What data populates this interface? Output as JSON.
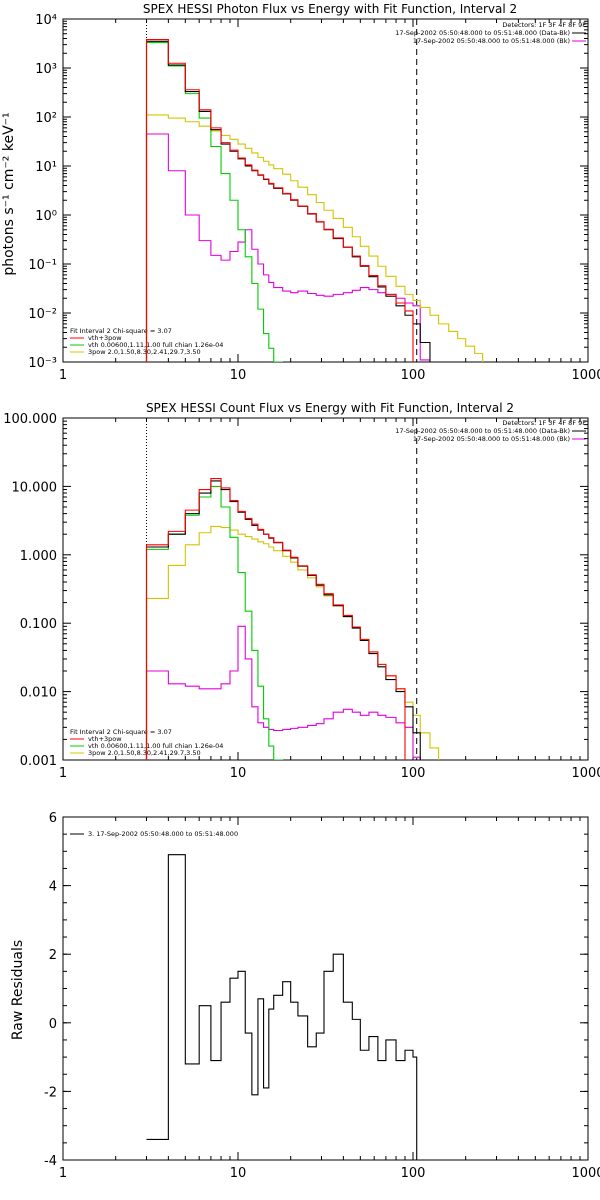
{
  "chart_data": [
    {
      "type": "line",
      "subtype": "step",
      "title": "SPEX HESSI Photon Flux vs Energy with Fit Function, Interval 2",
      "ylabel": "photons s⁻¹ cm⁻² keV⁻¹",
      "xlabel": "",
      "xscale": "log",
      "yscale": "log",
      "xlim": [
        1,
        1000
      ],
      "ylim": [
        0.001,
        10000
      ],
      "xticks": [
        "1",
        "10",
        "100",
        "1000"
      ],
      "yticks": [
        "10⁻³",
        "10⁻²",
        "10⁻¹",
        "10⁰",
        "10¹",
        "10²",
        "10³",
        "10⁴"
      ],
      "header_lines": [
        "Detectors: 1F 3F 4F 8F 9F",
        "17-Sep-2002 05:50:48.000 to 05:51:48.000 (Data-Bk)",
        "17-Sep-2002 05:50:48.000 to 05:51:48.000 (Bk)"
      ],
      "legend": [
        "Fit Interval 2   Chi-square = 3.07",
        "vth+3pow",
        "vth 0.00600,1.11,1.00  full chian 1.26e-04",
        "3pow 2.0,1.50,8.30,2.41,29.7,3.50"
      ],
      "edges": [
        3.0,
        4.0,
        5.0,
        6.0,
        7.0,
        8.0,
        9.0,
        10.0,
        11.0,
        12.0,
        13.0,
        14.0,
        15.0,
        16.0,
        18.0,
        20.0,
        22.0,
        25.0,
        28.0,
        31.0,
        35.0,
        40.0,
        45.0,
        50.0,
        56.0,
        63.0,
        70.0,
        80.0,
        90.0,
        100.0,
        110.0,
        125.0,
        140.0,
        160.0,
        180.0,
        200.0,
        225.0,
        250.0
      ],
      "series": [
        {
          "name": "",
          "color": "#000000",
          "values": [
            3500,
            1150,
            330,
            130,
            55,
            28,
            20,
            14,
            10,
            8,
            6.5,
            5.3,
            4.3,
            3.5,
            2.7,
            2.0,
            1.5,
            1.05,
            0.72,
            0.5,
            0.33,
            0.22,
            0.14,
            0.09,
            0.055,
            0.034,
            0.022,
            0.014,
            0.009,
            0.006,
            0.0025
          ]
        },
        {
          "name": "vth+3pow",
          "color": "#ff0000",
          "values": [
            3800,
            1250,
            360,
            140,
            60,
            30,
            21,
            14.5,
            10.5,
            8.2,
            6.6,
            5.4,
            4.4,
            3.6,
            2.75,
            2.05,
            1.52,
            1.07,
            0.73,
            0.51,
            0.34,
            0.22,
            0.145,
            0.093,
            0.058,
            0.036,
            0.024,
            0.016,
            0.011
          ]
        },
        {
          "name": "vth",
          "color": "#00cc00",
          "values": [
            3300,
            1100,
            300,
            95,
            25,
            7,
            2.0,
            0.5,
            0.14,
            0.04,
            0.012,
            0.0038,
            0.0019,
            0.001
          ]
        },
        {
          "name": "3pow",
          "color": "#d4c400",
          "values": [
            110,
            95,
            80,
            65,
            52,
            42,
            35,
            28,
            23,
            18.5,
            15,
            12.5,
            10.5,
            8.8,
            6.8,
            5.0,
            3.7,
            2.6,
            1.8,
            1.25,
            0.85,
            0.56,
            0.36,
            0.23,
            0.145,
            0.09,
            0.056,
            0.035,
            0.024,
            0.018,
            0.013,
            0.009,
            0.006,
            0.0042,
            0.003,
            0.0021,
            0.0015
          ]
        },
        {
          "name": "(Bk)",
          "color": "#e000e0",
          "values": [
            45,
            8,
            1.0,
            0.3,
            0.15,
            0.12,
            0.18,
            0.28,
            0.5,
            0.2,
            0.1,
            0.06,
            0.042,
            0.033,
            0.028,
            0.026,
            0.028,
            0.025,
            0.023,
            0.022,
            0.024,
            0.026,
            0.029,
            0.033,
            0.03,
            0.026,
            0.024,
            0.02,
            0.016,
            0.014,
            0.0011
          ]
        }
      ],
      "vlines": [
        {
          "x": 3.0,
          "style": "dotted"
        },
        {
          "x": 105,
          "style": "dashed"
        }
      ]
    },
    {
      "type": "line",
      "subtype": "step",
      "title": "SPEX HESSI Count Flux vs Energy with Fit Function, Interval 2",
      "ylabel": "",
      "xscale": "log",
      "yscale": "log",
      "xlim": [
        1,
        1000
      ],
      "ylim": [
        0.001,
        100
      ],
      "xticks": [
        "1",
        "10",
        "100",
        "1000"
      ],
      "yticks": [
        "0.001",
        "0.010",
        "0.100",
        "1.000",
        "10.000",
        "100.000"
      ],
      "header_lines": [
        "Detectors: 1F 3F 4F 8F 9F",
        "17-Sep-2002 05:50:48.000 to 05:51:48.000 (Data-Bk)",
        "17-Sep-2002 05:50:48.000 to 05:51:48.000 (Bk)"
      ],
      "legend": [
        "Fit Interval 2   Chi-square = 3.07",
        "vth+3pow",
        "vth 0.00600,1.11,1.00  full chian 1.26e-04",
        "3pow 2.0,1.50,8.30,2.41,29.7,3.50"
      ],
      "edges": [
        3.0,
        4.0,
        5.0,
        6.0,
        7.0,
        8.0,
        9.0,
        10.0,
        11.0,
        12.0,
        13.0,
        14.0,
        15.0,
        16.0,
        18.0,
        20.0,
        22.0,
        25.0,
        28.0,
        31.0,
        35.0,
        40.0,
        45.0,
        50.0,
        56.0,
        63.0,
        70.0,
        80.0,
        90.0,
        100.0,
        110.0,
        125.0,
        140.0
      ],
      "series": [
        {
          "name": "",
          "color": "#000000",
          "values": [
            1.3,
            2.0,
            4.0,
            8.0,
            12.0,
            9.0,
            6.0,
            4.2,
            3.3,
            2.7,
            2.3,
            2.0,
            1.75,
            1.5,
            1.15,
            0.9,
            0.68,
            0.5,
            0.36,
            0.26,
            0.18,
            0.125,
            0.085,
            0.056,
            0.036,
            0.023,
            0.015,
            0.01,
            0.006,
            0.0025
          ]
        },
        {
          "name": "vth+3pow",
          "color": "#ff0000",
          "values": [
            1.4,
            2.2,
            4.5,
            9.0,
            13.0,
            9.5,
            6.2,
            4.3,
            3.4,
            2.8,
            2.35,
            2.0,
            1.78,
            1.52,
            1.17,
            0.92,
            0.69,
            0.51,
            0.37,
            0.27,
            0.185,
            0.13,
            0.088,
            0.058,
            0.038,
            0.025,
            0.017,
            0.011
          ]
        },
        {
          "name": "vth",
          "color": "#00cc00",
          "values": [
            1.2,
            2.0,
            3.8,
            7.0,
            10.0,
            5.0,
            1.8,
            0.55,
            0.15,
            0.04,
            0.012,
            0.004,
            0.0016,
            0.001
          ]
        },
        {
          "name": "3pow",
          "color": "#d4c400",
          "values": [
            0.23,
            0.7,
            1.4,
            2.1,
            2.6,
            2.5,
            2.3,
            2.0,
            1.85,
            1.7,
            1.55,
            1.45,
            1.3,
            1.15,
            0.95,
            0.78,
            0.6,
            0.46,
            0.34,
            0.25,
            0.18,
            0.125,
            0.087,
            0.058,
            0.038,
            0.025,
            0.017,
            0.011,
            0.007,
            0.0045,
            0.0025,
            0.0015,
            0.001
          ]
        },
        {
          "name": "(Bk)",
          "color": "#e000e0",
          "values": [
            0.02,
            0.013,
            0.012,
            0.011,
            0.011,
            0.013,
            0.02,
            0.09,
            0.03,
            0.006,
            0.0035,
            0.003,
            0.0028,
            0.0027,
            0.0028,
            0.0029,
            0.003,
            0.0032,
            0.0034,
            0.004,
            0.005,
            0.0055,
            0.005,
            0.0045,
            0.005,
            0.0045,
            0.0042,
            0.0035,
            0.003,
            0.0011
          ]
        }
      ],
      "vlines": [
        {
          "x": 3.0,
          "style": "dotted"
        },
        {
          "x": 105,
          "style": "dashed"
        }
      ]
    },
    {
      "type": "line",
      "subtype": "step",
      "title": "",
      "ylabel": "Raw Residuals",
      "xscale": "log",
      "yscale": "linear",
      "xlim": [
        1,
        1000
      ],
      "ylim": [
        -4,
        6
      ],
      "xticks": [
        "1",
        "10",
        "100",
        "1000"
      ],
      "yticks": [
        "-4",
        "-2",
        "0",
        "2",
        "4",
        "6"
      ],
      "legend": [
        "3. 17-Sep-2002 05:50:48.000 to 05:51:48.000"
      ],
      "edges": [
        3.0,
        4.0,
        5.0,
        6.0,
        7.0,
        8.0,
        9.0,
        10.0,
        11.0,
        12.0,
        13.0,
        14.0,
        15.0,
        16.0,
        18.0,
        20.0,
        22.0,
        25.0,
        28.0,
        31.0,
        35.0,
        40.0,
        45.0,
        50.0,
        56.0,
        63.0,
        70.0,
        80.0,
        90.0,
        100.0,
        105.0
      ],
      "series": [
        {
          "name": "",
          "color": "#000000",
          "values": [
            -3.4,
            4.9,
            -1.2,
            0.5,
            -1.1,
            0.6,
            1.3,
            1.5,
            -0.3,
            -2.1,
            0.7,
            -1.9,
            0.4,
            0.8,
            1.2,
            0.6,
            0.2,
            -0.7,
            -0.3,
            1.5,
            2.0,
            0.6,
            0.1,
            -0.8,
            -0.4,
            -1.1,
            -0.5,
            -1.1,
            -0.8,
            -1.0
          ]
        }
      ],
      "hlines": [],
      "vlines": []
    }
  ]
}
